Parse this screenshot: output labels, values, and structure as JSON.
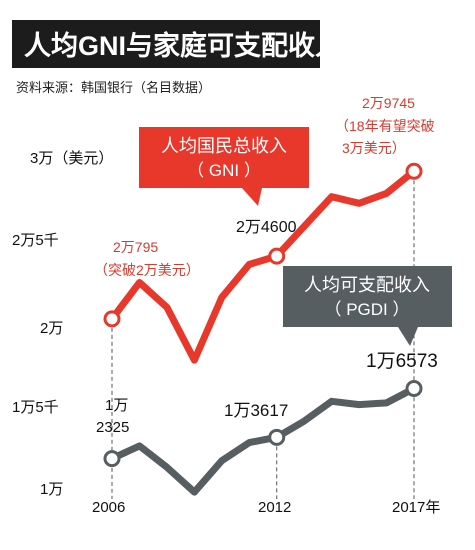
{
  "header": {
    "title": "人均GNI与家庭可支配收入",
    "source": "资料来源：韩国银行（名目数据）"
  },
  "colors": {
    "title_bg": "#1c1c1c",
    "gni": "#e8382c",
    "pgdi": "#565e61",
    "gni_text": "#d93a2e"
  },
  "chart_data": {
    "type": "line",
    "x": [
      2006,
      2007,
      2008,
      2009,
      2010,
      2011,
      2012,
      2013,
      2014,
      2015,
      2016,
      2017
    ],
    "x_ticks": [
      "2006",
      "2012",
      "2017年"
    ],
    "y_ticks": [
      {
        "value": 10000,
        "label": "1万"
      },
      {
        "value": 15000,
        "label": "1万5千"
      },
      {
        "value": 20000,
        "label": "2万"
      },
      {
        "value": 25000,
        "label": "2万5千"
      },
      {
        "value": 30000,
        "label": "3万（美元）"
      }
    ],
    "ylim": [
      10000,
      30000
    ],
    "grid": false,
    "series": [
      {
        "name": "人均国民总收入（GNI）",
        "values": [
          20795,
          23000,
          21500,
          18300,
          22100,
          24100,
          24600,
          26400,
          28200,
          27800,
          28400,
          29745
        ]
      },
      {
        "name": "人均可支配收入（PGDI）",
        "values": [
          12325,
          13100,
          11800,
          10300,
          12200,
          13300,
          13617,
          14600,
          15800,
          15600,
          15700,
          16573
        ]
      }
    ],
    "annotations": {
      "gni_2006": {
        "line1": "2万795",
        "line2": "（突破2万美元）"
      },
      "gni_2012": "2万4600",
      "gni_2017": {
        "line1": "2万9745",
        "line2": "（18年有望突破",
        "line3": "3万美元）"
      },
      "pgdi_2006": {
        "line1": "1万",
        "line2": "2325"
      },
      "pgdi_2012": "1万3617",
      "pgdi_2017": "1万6573"
    },
    "callouts": {
      "gni": {
        "line1": "人均国民总收入",
        "line2": "（ GNI ）"
      },
      "pgdi": {
        "line1": "人均可支配收入",
        "line2": "（ PGDI ）"
      }
    }
  }
}
